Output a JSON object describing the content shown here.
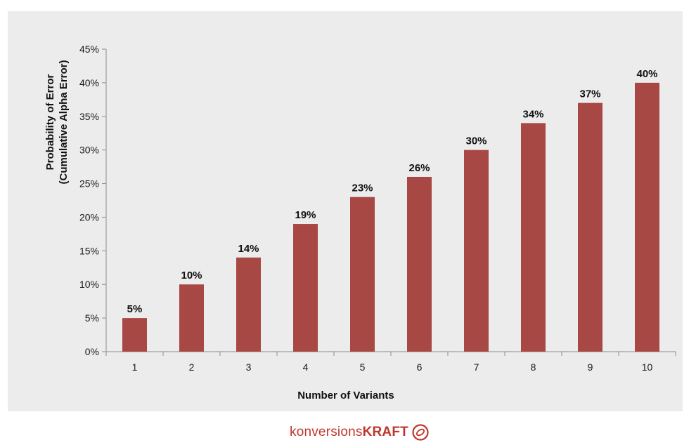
{
  "chart_data": {
    "type": "bar",
    "categories": [
      "1",
      "2",
      "3",
      "4",
      "5",
      "6",
      "7",
      "8",
      "9",
      "10"
    ],
    "values": [
      5,
      10,
      14,
      19,
      23,
      26,
      30,
      34,
      37,
      40
    ],
    "data_labels": [
      "5%",
      "10%",
      "14%",
      "19%",
      "23%",
      "26%",
      "30%",
      "34%",
      "37%",
      "40%"
    ],
    "xlabel": "Number of Variants",
    "ylabel_line1": "Probability of Error",
    "ylabel_line2": "(Cumulative Alpha Error)",
    "ylim": [
      0,
      45
    ],
    "yticks": [
      0,
      5,
      10,
      15,
      20,
      25,
      30,
      35,
      40,
      45
    ],
    "ytick_labels": [
      "0%",
      "5%",
      "10%",
      "15%",
      "20%",
      "25%",
      "30%",
      "35%",
      "40%",
      "45%"
    ],
    "grid": false,
    "legend": "none",
    "bar_color": "#a84845",
    "background_color": "#ececec"
  },
  "brand": {
    "light": "konversions",
    "bold": "KRAFT",
    "icon": "brand-circle-icon",
    "color": "#c0362c"
  }
}
